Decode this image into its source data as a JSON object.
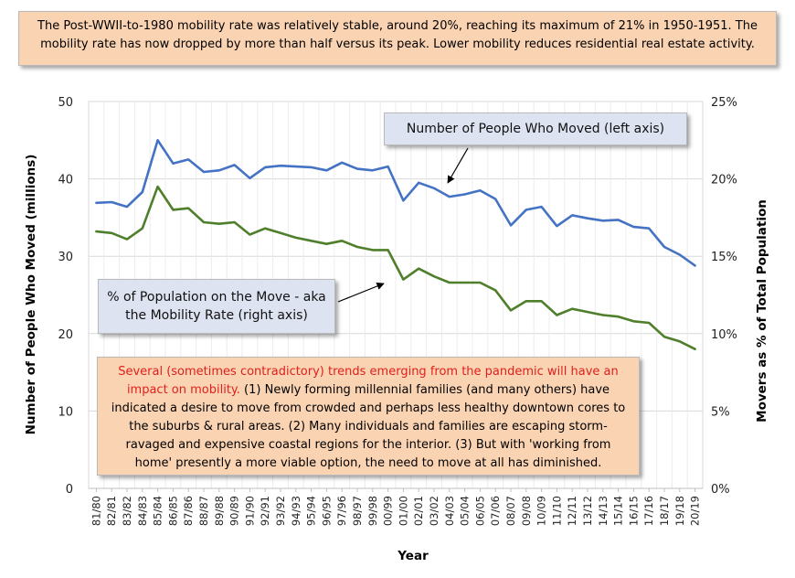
{
  "headline": "The Post-WWII-to-1980 mobility rate was relatively stable, around 20%, reaching its maximum of 21% in 1950-1951. The mobility rate has now dropped by more than half versus its peak. Lower mobility reduces residential real estate activity.",
  "note": {
    "lead": "Several (sometimes contradictory) trends emerging from the pandemic will have an impact on mobility.",
    "body": " (1) Newly forming millennial families (and many others) have indicated a desire to move from crowded and perhaps less healthy downtown cores to the suburbs & rural areas. (2) Many individuals and families are escaping storm-ravaged and expensive coastal regions for the interior. (3) But with 'working from home' presently a more viable option, the need to move at all has diminished."
  },
  "chart_data": {
    "type": "line",
    "xlabel": "Year",
    "ylabel_left": "Number of People Who Moved (millions)",
    "ylabel_right": "Movers as % of Total Population",
    "ylim_left": [
      0,
      50
    ],
    "ylim_right": [
      0,
      25
    ],
    "yticks_left": [
      "0",
      "10",
      "20",
      "30",
      "40",
      "50"
    ],
    "yticks_right": [
      "0%",
      "5%",
      "10%",
      "15%",
      "20%",
      "25%"
    ],
    "grid": true,
    "categories": [
      "81/80",
      "82/81",
      "83/82",
      "84/83",
      "85/84",
      "86/85",
      "87/86",
      "88/87",
      "89/88",
      "90/89",
      "91/90",
      "92/91",
      "93/92",
      "94/93",
      "95/94",
      "96/95",
      "97/96",
      "98/97",
      "99/98",
      "00/99",
      "01/00",
      "02/01",
      "03/02",
      "04/03",
      "05/04",
      "06/05",
      "07/06",
      "08/07",
      "09/08",
      "10/09",
      "11/10",
      "12/11",
      "13/12",
      "14/13",
      "15/14",
      "16/15",
      "17/16",
      "18/17",
      "19/18",
      "20/19"
    ],
    "series": [
      {
        "name": "Number of People Who Moved (left axis)",
        "axis": "left",
        "color": "#4472c4",
        "values": [
          36.9,
          37.0,
          36.4,
          38.3,
          45.0,
          42.0,
          42.5,
          40.9,
          41.1,
          41.8,
          40.1,
          41.5,
          41.7,
          41.6,
          41.5,
          41.1,
          42.1,
          41.3,
          41.1,
          41.6,
          37.2,
          39.5,
          38.8,
          37.7,
          38.0,
          38.5,
          37.4,
          34.0,
          36.0,
          36.4,
          33.9,
          35.3,
          34.9,
          34.6,
          34.7,
          33.8,
          33.6,
          31.2,
          30.2,
          28.8
        ]
      },
      {
        "name": "% of Population on the Move - aka the Mobility Rate (right axis)",
        "axis": "right",
        "color": "#4f7f2a",
        "values": [
          16.6,
          16.5,
          16.1,
          16.8,
          19.5,
          18.0,
          18.1,
          17.2,
          17.1,
          17.2,
          16.4,
          16.8,
          16.5,
          16.2,
          16.0,
          15.8,
          16.0,
          15.6,
          15.4,
          15.4,
          13.5,
          14.2,
          13.7,
          13.3,
          13.3,
          13.3,
          12.8,
          11.5,
          12.1,
          12.1,
          11.2,
          11.6,
          11.4,
          11.2,
          11.1,
          10.8,
          10.7,
          9.8,
          9.5,
          9.0
        ]
      }
    ]
  }
}
